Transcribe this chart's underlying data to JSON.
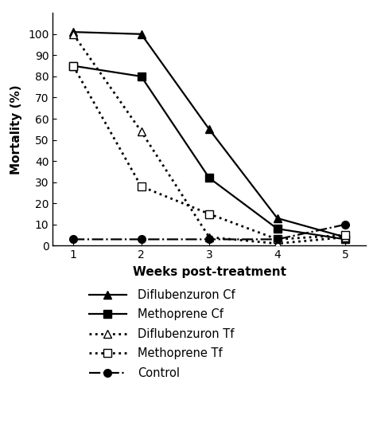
{
  "weeks": [
    1,
    2,
    3,
    4,
    5
  ],
  "diflubenzuron_cf": [
    101,
    100,
    55,
    13,
    4
  ],
  "methoprene_cf": [
    85,
    80,
    32,
    8,
    3
  ],
  "diflubenzuron_tf": [
    100,
    54,
    4,
    1,
    4
  ],
  "methoprene_tf": [
    85,
    28,
    15,
    3,
    5
  ],
  "control": [
    3,
    3,
    3,
    3,
    10
  ],
  "xlabel": "Weeks post-treatment",
  "ylabel": "Mortality (%)",
  "ylim": [
    0,
    110
  ],
  "xlim": [
    0.7,
    5.3
  ],
  "yticks": [
    0,
    10,
    20,
    30,
    40,
    50,
    60,
    70,
    80,
    90,
    100
  ],
  "xticks": [
    1,
    2,
    3,
    4,
    5
  ],
  "legend_labels": [
    "Diflubenzuron Cf",
    "Methoprene Cf",
    "Diflubenzuron Tf",
    "Methoprene Tf",
    "Control"
  ],
  "line_color": "#000000",
  "bg_color": "#ffffff",
  "axis_fontsize": 11,
  "tick_fontsize": 10,
  "legend_fontsize": 10.5
}
